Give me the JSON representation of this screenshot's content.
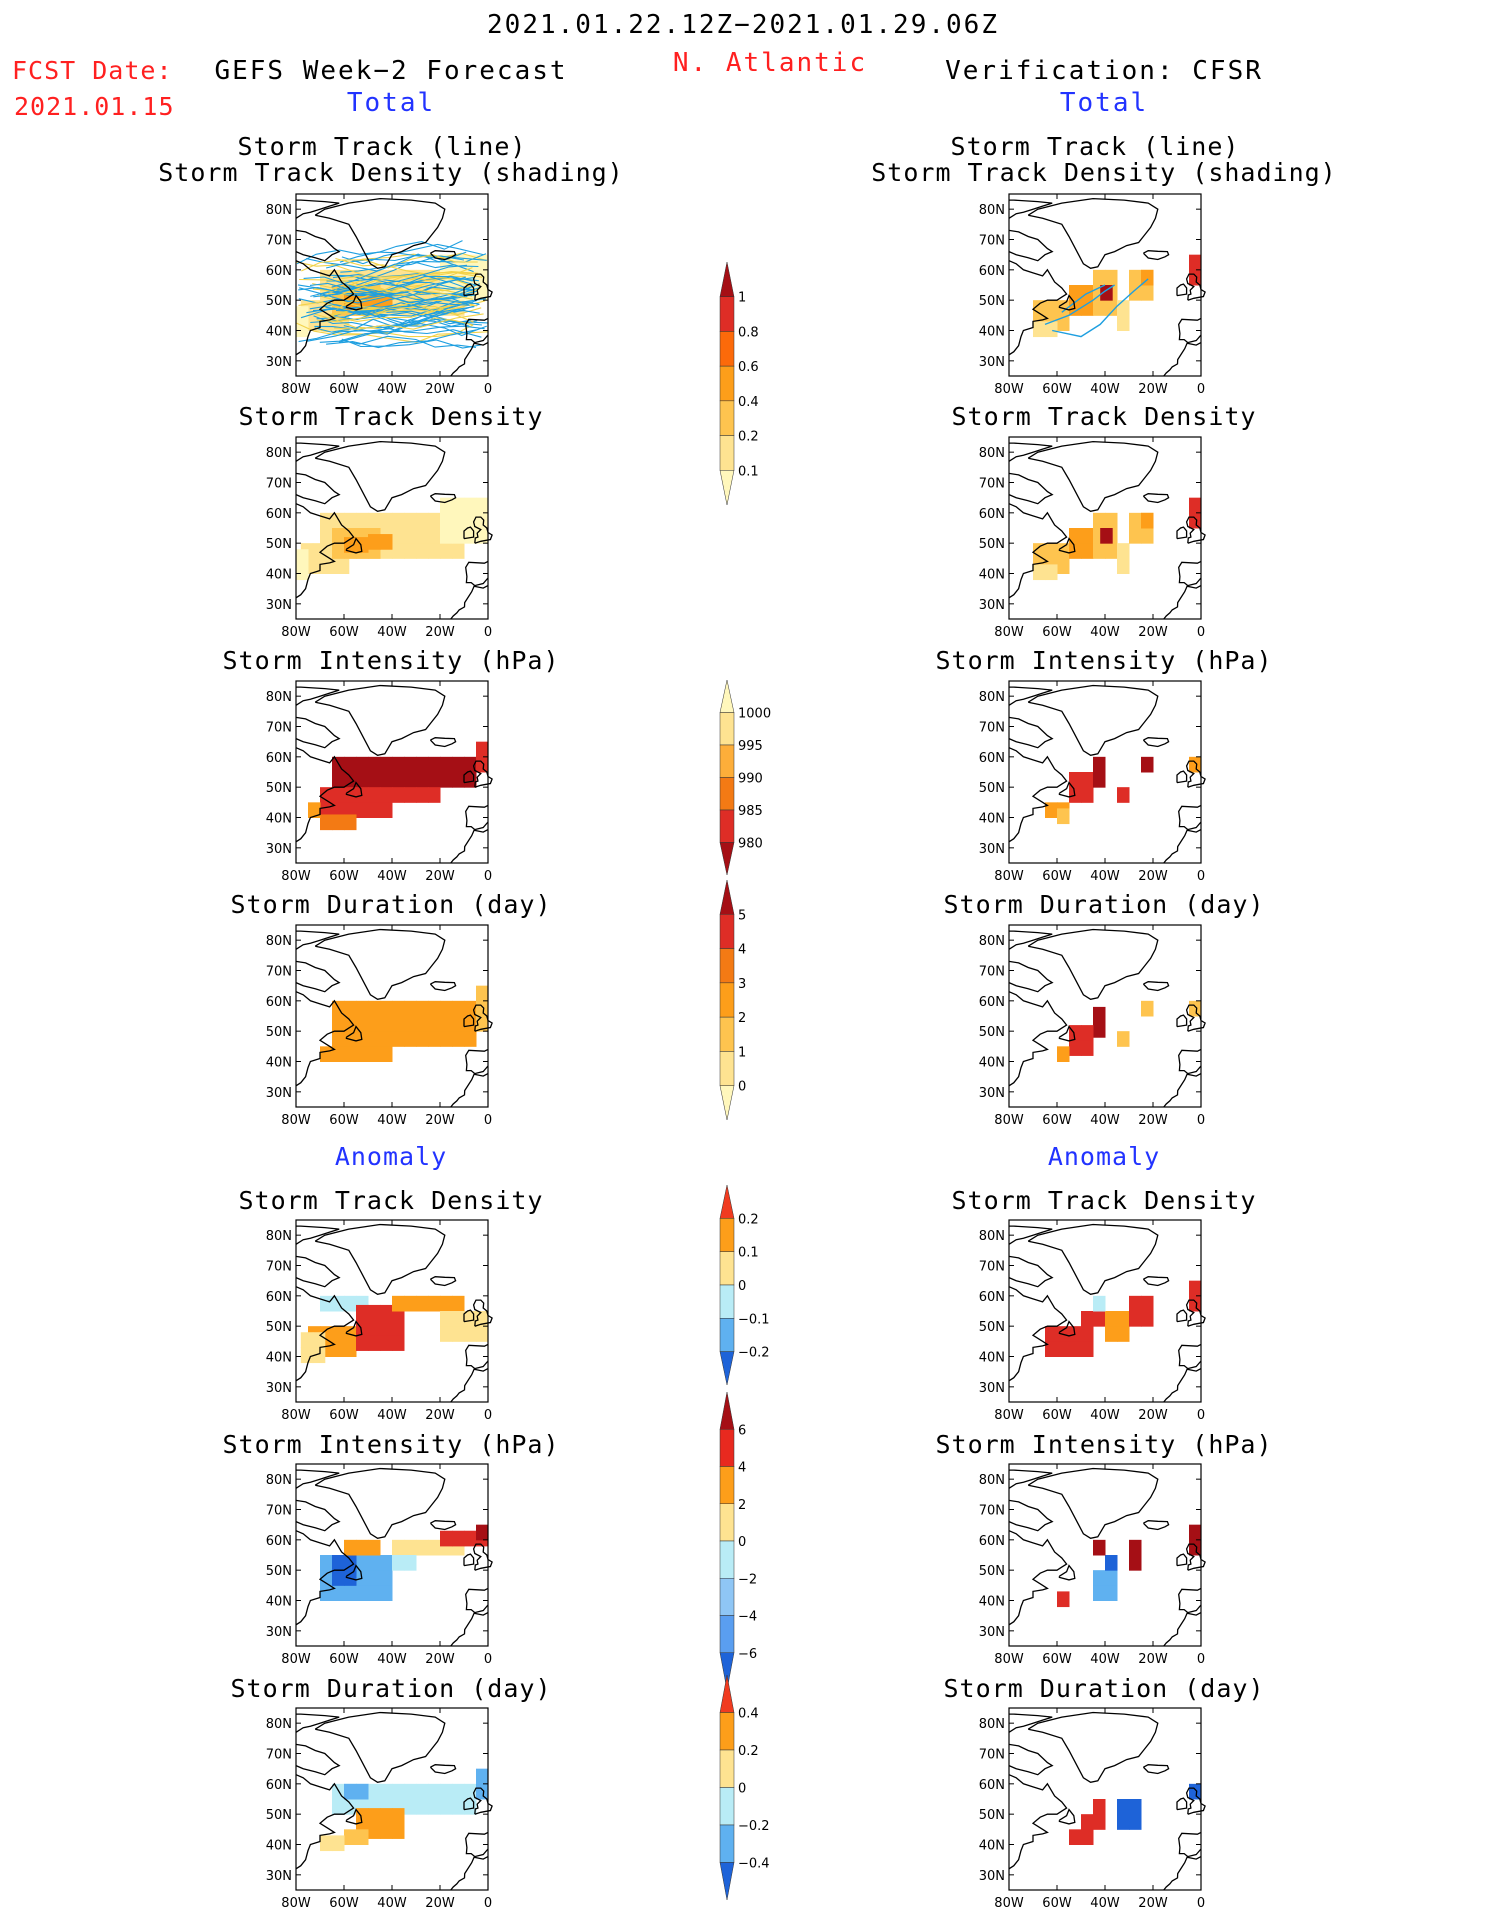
{
  "header": {
    "title": "2021.01.22.12Z−2021.01.29.06Z",
    "region": "N. Atlantic",
    "fcst_label": "FCST Date:",
    "fcst_date": "2021.01.15",
    "left_title": "GEFS Week−2 Forecast",
    "right_title": "Verification: CFSR",
    "total_left": "Total",
    "total_right": "Total",
    "anomaly_left": "Anomaly",
    "anomaly_right": "Anomaly"
  },
  "panel_titles": {
    "track_line": "Storm Track (line)",
    "track_shading": "Storm Track Density (shading)",
    "density": "Storm Track Density",
    "intensity": "Storm Intensity (hPa)",
    "duration": "Storm Duration (day)"
  },
  "map_axes": {
    "lon_labels": [
      "80W",
      "60W",
      "40W",
      "20W",
      "0"
    ],
    "lat_labels": [
      "80N",
      "70N",
      "60N",
      "50N",
      "40N",
      "30N"
    ]
  },
  "colorbars": [
    {
      "name": "density-total",
      "labels": [
        "1",
        "0.8",
        "0.6",
        "0.4",
        "0.2",
        "0.1"
      ],
      "colors": [
        "#a50f15",
        "#de2d26",
        "#fc6a0a",
        "#fd9e1a",
        "#fec44f",
        "#fee391",
        "#fff7bc"
      ]
    },
    {
      "name": "intensity-total",
      "labels": [
        "1000",
        "995",
        "990",
        "985",
        "980"
      ],
      "colors": [
        "#fff7bc",
        "#fee391",
        "#fdae3a",
        "#f37a14",
        "#de2d26",
        "#a50f15"
      ]
    },
    {
      "name": "duration-total",
      "labels": [
        "5",
        "4",
        "3",
        "2",
        "1",
        "0"
      ],
      "colors": [
        "#a50f15",
        "#de2d26",
        "#f37a14",
        "#fd9e1a",
        "#fec44f",
        "#fee391",
        "#fff7bc"
      ]
    },
    {
      "name": "density-anomaly",
      "labels": [
        "0.2",
        "0.1",
        "0",
        "−0.1",
        "−0.2"
      ],
      "colors": [
        "#f03b20",
        "#fd9e1a",
        "#fee391",
        "#b9ecf6",
        "#5fb1f0",
        "#1e63d8"
      ]
    },
    {
      "name": "intensity-anomaly",
      "labels": [
        "6",
        "4",
        "2",
        "0",
        "−2",
        "−4",
        "−6"
      ],
      "colors": [
        "#a50f15",
        "#e8291f",
        "#fd9e1a",
        "#fee391",
        "#b9ecf6",
        "#8fc6f5",
        "#5a9ef0",
        "#1e63d8"
      ]
    },
    {
      "name": "duration-anomaly",
      "labels": [
        "0.4",
        "0.2",
        "0",
        "−0.2",
        "−0.4"
      ],
      "colors": [
        "#f03b20",
        "#fd9e1a",
        "#fee391",
        "#b9ecf6",
        "#5fb1f0",
        "#1e63d8"
      ]
    }
  ],
  "colors": {
    "track_line": "#1e9fe0",
    "track_line_ens": "#f2d24a",
    "coast": "#000000",
    "header_red": "#ff2020",
    "header_blue": "#2233ff"
  },
  "chart_data": [
    {
      "type": "heatmap",
      "name": "gefs-track",
      "panel": "GEFS Total Storm Track (line) / Density (shading)",
      "x": "longitude",
      "y": "latitude",
      "xlim": [
        -80,
        0
      ],
      "ylim": [
        25,
        85
      ]
    },
    {
      "type": "heatmap",
      "name": "cfsr-track",
      "panel": "CFSR Total Storm Track (line) / Density (shading)",
      "xlim": [
        -80,
        0
      ],
      "ylim": [
        25,
        85
      ],
      "max_density_at": [
        -40,
        53
      ]
    },
    {
      "type": "heatmap",
      "name": "gefs-density",
      "panel": "GEFS Total Storm Track Density",
      "range": [
        0.1,
        0.6
      ]
    },
    {
      "type": "heatmap",
      "name": "cfsr-density",
      "panel": "CFSR Total Storm Track Density",
      "range": [
        0.1,
        1
      ]
    },
    {
      "type": "heatmap",
      "name": "gefs-intensity",
      "panel": "GEFS Total Storm Intensity (hPa)",
      "range": [
        980,
        1000
      ]
    },
    {
      "type": "heatmap",
      "name": "cfsr-intensity",
      "panel": "CFSR Total Storm Intensity (hPa)",
      "range": [
        980,
        1000
      ]
    },
    {
      "type": "heatmap",
      "name": "gefs-duration",
      "panel": "GEFS Total Storm Duration (day)",
      "range": [
        0,
        3
      ]
    },
    {
      "type": "heatmap",
      "name": "cfsr-duration",
      "panel": "CFSR Total Storm Duration (day)",
      "range": [
        0,
        5
      ]
    },
    {
      "type": "heatmap",
      "name": "gefs-density-anom",
      "panel": "GEFS Anomaly Storm Track Density",
      "range": [
        -0.1,
        0.2
      ]
    },
    {
      "type": "heatmap",
      "name": "cfsr-density-anom",
      "panel": "CFSR Anomaly Storm Track Density",
      "range": [
        0,
        0.2
      ]
    },
    {
      "type": "heatmap",
      "name": "gefs-intensity-anom",
      "panel": "GEFS Anomaly Storm Intensity (hPa)",
      "range": [
        -6,
        6
      ]
    },
    {
      "type": "heatmap",
      "name": "cfsr-intensity-anom",
      "panel": "CFSR Anomaly Storm Intensity (hPa)",
      "range": [
        -6,
        6
      ]
    },
    {
      "type": "heatmap",
      "name": "gefs-duration-anom",
      "panel": "GEFS Anomaly Storm Duration (day)",
      "range": [
        -0.4,
        0.4
      ]
    },
    {
      "type": "heatmap",
      "name": "cfsr-duration-anom",
      "panel": "CFSR Anomaly Storm Duration (day)",
      "range": [
        -0.4,
        0.4
      ]
    }
  ]
}
